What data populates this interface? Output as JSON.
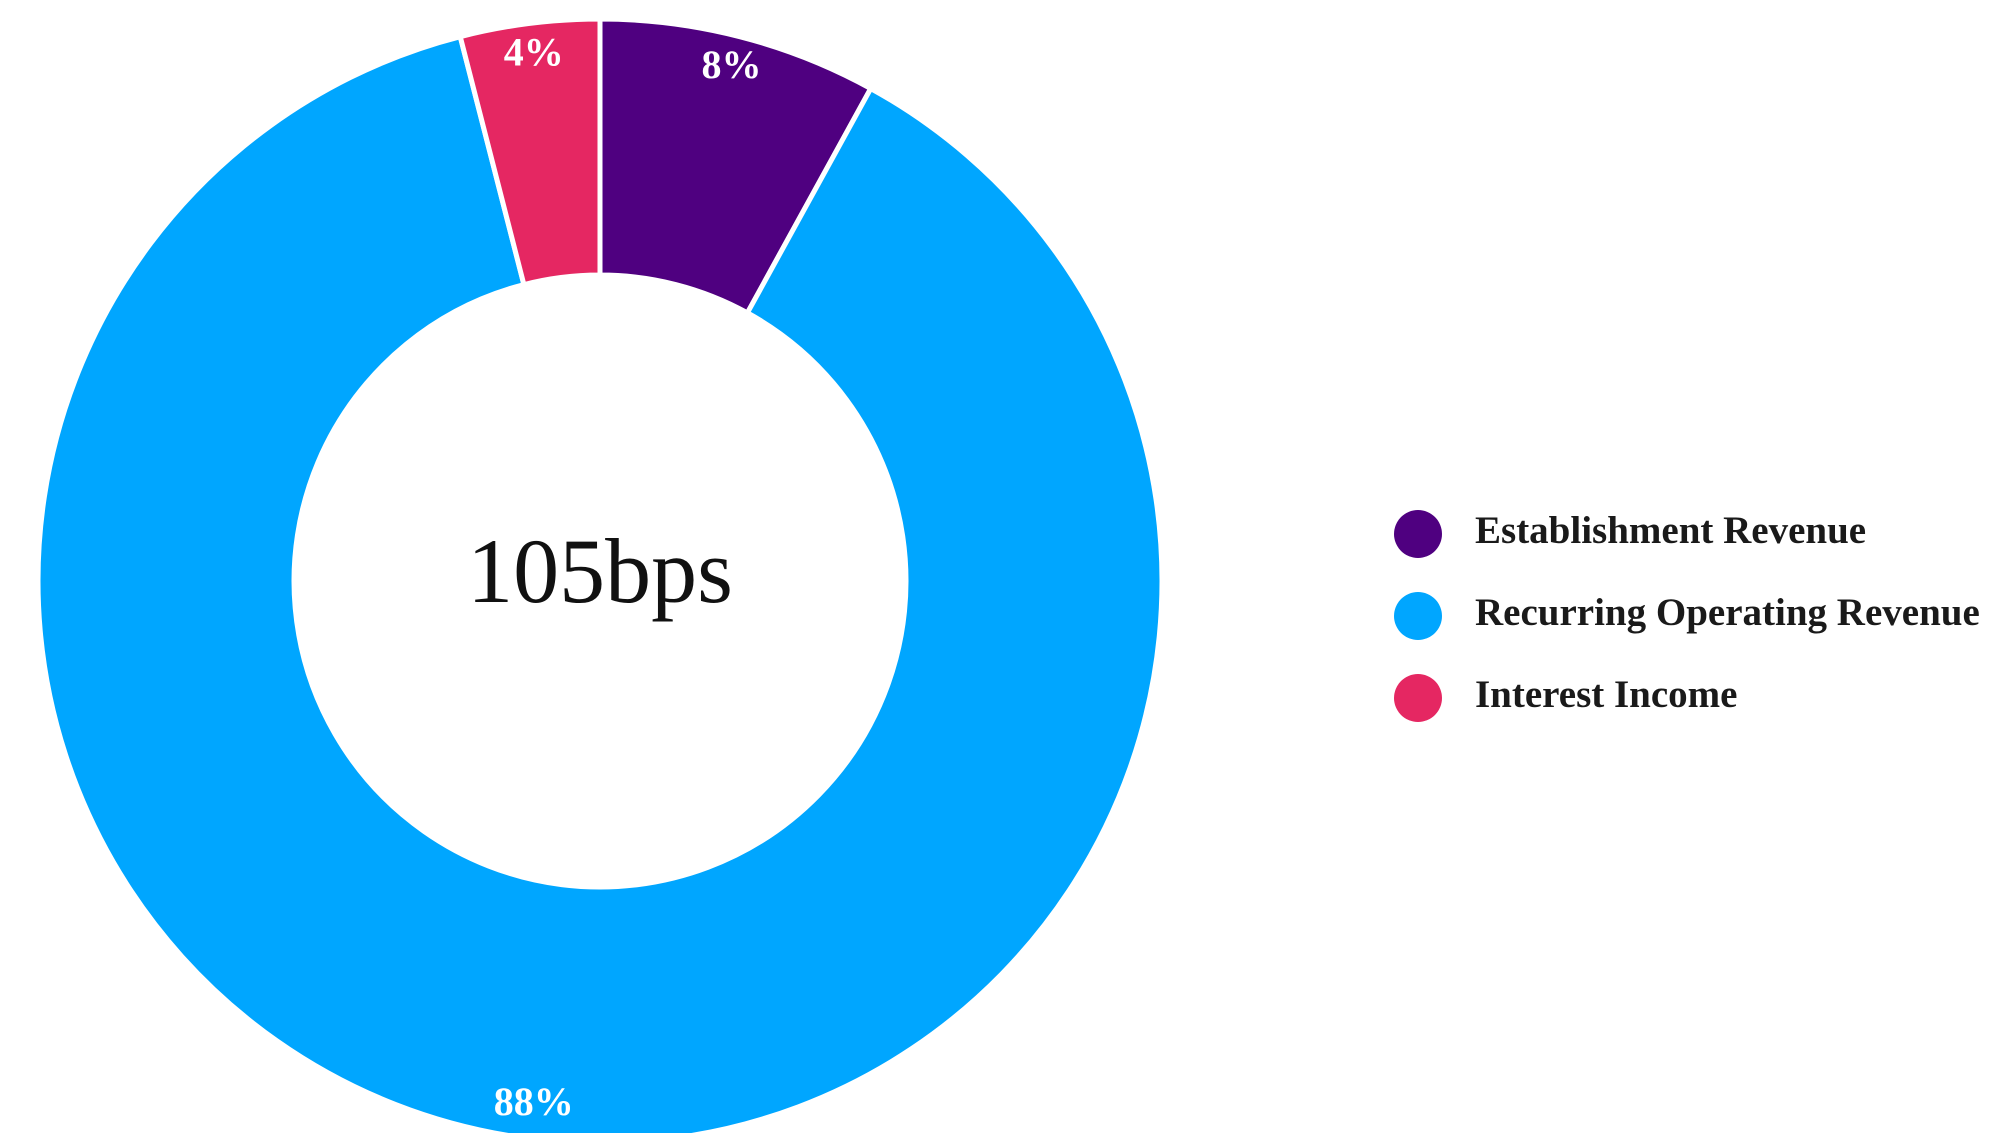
{
  "chart_data": {
    "type": "donut",
    "center_label": "105bps",
    "categories": [
      "Establishment Revenue",
      "Recurring Operating Revenue",
      "Interest Income"
    ],
    "values": [
      8,
      88,
      4
    ],
    "value_labels": [
      "8%",
      "88%",
      "4%"
    ],
    "colors": [
      "#4f0080",
      "#00a6ff",
      "#e52762"
    ],
    "legend": "right"
  }
}
